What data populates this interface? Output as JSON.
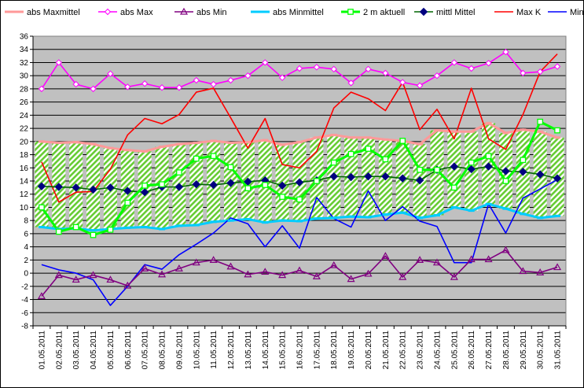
{
  "chart_data": {
    "type": "line",
    "title": "",
    "xlabel": "",
    "ylabel": "",
    "ylim": [
      -8,
      36
    ],
    "ytick_step": 2,
    "grid": true,
    "legend_placement": "top",
    "categories": [
      "01.05.2011",
      "02.05.2011",
      "03.05.2011",
      "04.05.2011",
      "05.05.2011",
      "06.05.2011",
      "07.05.2011",
      "08.05.2011",
      "09.05.2011",
      "10.05.2011",
      "11.05.2011",
      "12.05.2011",
      "13.05.2011",
      "14.05.2011",
      "15.05.2011",
      "16.05.2011",
      "17.05.2011",
      "18.05.2011",
      "19.05.2011",
      "20.05.2011",
      "21.05.2011",
      "22.05.2011",
      "23.05.2011",
      "24.05.2011",
      "25.05.2011",
      "26.05.2011",
      "27.05.2011",
      "28.05.2011",
      "29.05.2011",
      "30.05.2011",
      "31.05.2011"
    ],
    "series": [
      {
        "name": "abs Maxmittel",
        "color": "#ff9999",
        "values": [
          20.0,
          19.8,
          19.9,
          19.6,
          19.0,
          18.7,
          18.5,
          19.2,
          19.6,
          19.8,
          20.1,
          19.8,
          19.9,
          20.2,
          19.5,
          19.9,
          20.6,
          21.0,
          20.6,
          20.6,
          20.3,
          20.1,
          19.6,
          21.7,
          21.5,
          21.5,
          22.8,
          21.3,
          21.8,
          21.5,
          20.6
        ]
      },
      {
        "name": "abs Max",
        "color": "#ff00ff",
        "values": [
          28.0,
          32.0,
          28.7,
          28.0,
          30.3,
          28.3,
          28.8,
          28.2,
          28.2,
          29.3,
          28.7,
          29.3,
          30.0,
          32.0,
          29.7,
          31.1,
          31.3,
          31.0,
          28.9,
          31.0,
          30.4,
          29.0,
          28.5,
          30.0,
          32.0,
          31.1,
          31.9,
          33.6,
          30.4,
          30.6,
          31.4
        ]
      },
      {
        "name": "abs Min",
        "color": "#800080",
        "values": [
          -3.5,
          -0.3,
          -1.0,
          -0.3,
          -1.0,
          -1.9,
          0.7,
          -0.2,
          0.7,
          1.6,
          2.0,
          1.0,
          -0.2,
          0.2,
          -0.3,
          0.4,
          -0.5,
          1.2,
          -0.9,
          -0.1,
          2.6,
          -0.6,
          2.0,
          1.6,
          -0.6,
          2.1,
          2.1,
          3.5,
          0.3,
          0.1,
          0.9
        ]
      },
      {
        "name": "abs Minmittel",
        "color": "#00ccff",
        "values": [
          7.0,
          6.7,
          6.8,
          6.5,
          6.7,
          6.9,
          7.0,
          6.7,
          7.2,
          7.3,
          7.8,
          8.0,
          8.2,
          7.7,
          8.0,
          7.9,
          8.3,
          8.4,
          8.6,
          8.5,
          8.9,
          9.2,
          8.4,
          8.8,
          10.0,
          9.5,
          10.5,
          9.8,
          9.0,
          8.4,
          8.7
        ]
      },
      {
        "name": "2 m aktuell",
        "color": "#00ff00",
        "values": [
          10.0,
          6.3,
          7.0,
          5.8,
          6.6,
          10.7,
          13.3,
          13.5,
          15.3,
          17.4,
          17.8,
          16.1,
          12.9,
          13.4,
          11.6,
          11.2,
          14.0,
          16.8,
          18.1,
          18.9,
          17.3,
          20.1,
          15.7,
          15.7,
          13.0,
          16.8,
          17.8,
          14.0,
          17.2,
          23.0,
          21.7
        ]
      },
      {
        "name": "mittl Mittel",
        "color": "#006600",
        "values": [
          13.2,
          13.1,
          13.0,
          12.7,
          13.0,
          12.5,
          12.3,
          13.1,
          13.1,
          13.5,
          13.4,
          13.7,
          13.9,
          14.1,
          13.3,
          13.8,
          14.1,
          14.7,
          14.6,
          14.7,
          14.7,
          14.4,
          14.1,
          15.7,
          16.2,
          15.8,
          16.2,
          15.5,
          15.4,
          15.0,
          14.4
        ]
      },
      {
        "name": "Max K",
        "color": "#ff0000",
        "values": [
          16.9,
          10.8,
          12.3,
          12.4,
          15.8,
          21.0,
          23.5,
          22.7,
          24.1,
          27.5,
          28.1,
          23.6,
          19.0,
          23.5,
          16.5,
          16.0,
          18.5,
          25.1,
          27.5,
          26.5,
          24.7,
          29.0,
          21.8,
          24.9,
          20.4,
          28.1,
          20.4,
          18.8,
          24.1,
          30.6,
          33.3
        ]
      },
      {
        "name": "Min K",
        "color": "#0000ff",
        "values": [
          1.3,
          0.5,
          0.0,
          -1.0,
          -4.9,
          -2.0,
          1.3,
          0.6,
          2.8,
          4.4,
          6.1,
          8.4,
          7.5,
          4.0,
          7.2,
          3.8,
          11.5,
          8.3,
          7.0,
          12.5,
          8.0,
          10.1,
          7.9,
          7.1,
          1.6,
          1.6,
          10.5,
          6.1,
          11.4,
          12.8,
          14.2
        ]
      }
    ]
  }
}
